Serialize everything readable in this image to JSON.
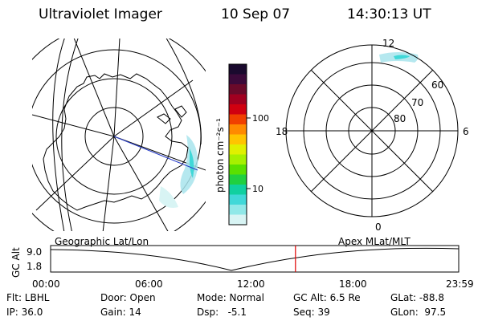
{
  "header": {
    "title": "Ultraviolet Imager",
    "date": "10 Sep 07",
    "time": "14:30:13 UT"
  },
  "colorbar": {
    "unit_label": "photon cm⁻²s⁻¹",
    "tick_labels": [
      "100",
      "10"
    ],
    "colors": [
      "#1a0a2e",
      "#3b0a3a",
      "#6a0a2a",
      "#a00020",
      "#d00010",
      "#f04000",
      "#ff8a00",
      "#ffc400",
      "#e0f000",
      "#a6f000",
      "#5ae000",
      "#20d040",
      "#10d0a0",
      "#40d8d8",
      "#90e8e8",
      "#d8f4f4"
    ]
  },
  "geo_map": {
    "label": "Geographic Lat/Lon"
  },
  "polar_plot": {
    "label": "Apex MLat/MLT",
    "mlt_labels": [
      "12",
      "18",
      "6",
      "0"
    ],
    "mlat_labels": [
      "60",
      "70",
      "80"
    ]
  },
  "altitude_plot": {
    "axis_label": "GC Alt",
    "y_ticks": [
      "9.0",
      "1.8"
    ],
    "x_ticks": [
      "00:00",
      "06:00",
      "12:00",
      "18:00",
      "23:59"
    ],
    "current_time_fraction": 0.6
  },
  "status": {
    "row1": [
      {
        "key": "flt",
        "text": "Flt: LBHL"
      },
      {
        "key": "door",
        "text": "Door: Open"
      },
      {
        "key": "mode",
        "text": "Mode: Normal"
      },
      {
        "key": "gcalt",
        "text": "GC Alt: 6.5 Re"
      },
      {
        "key": "glat",
        "text": "GLat: -88.8"
      }
    ],
    "row2": [
      {
        "key": "ip",
        "text": "IP: 36.0"
      },
      {
        "key": "gain",
        "text": "Gain: 14"
      },
      {
        "key": "dsp",
        "text": "Dsp:   -5.1"
      },
      {
        "key": "seq",
        "text": "Seq: 39"
      },
      {
        "key": "glon",
        "text": "GLon:  97.5"
      }
    ]
  },
  "colors": {
    "aurora": "#a8e4ec",
    "track": "#2a3fc8",
    "time_marker": "#e00000"
  }
}
